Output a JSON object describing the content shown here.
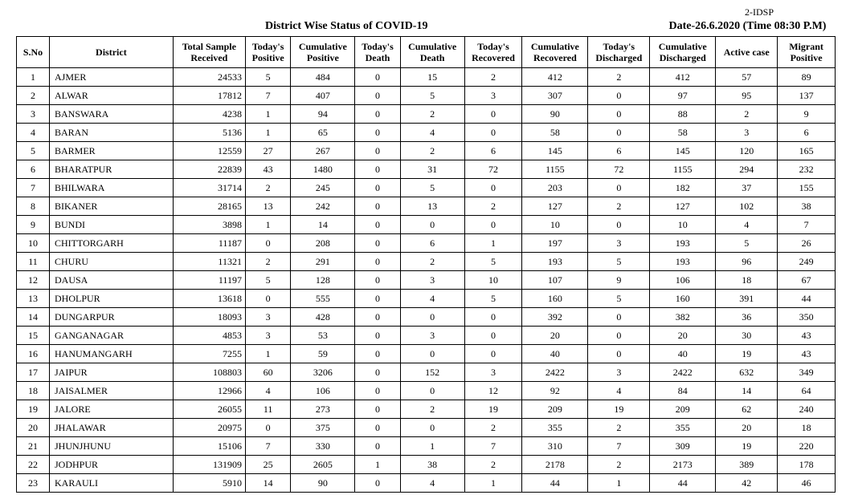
{
  "page_tag": "2-IDSP",
  "title": "District Wise Status of  COVID-19",
  "date_label": "Date-26.6.2020 (Time 08:30 P.M)",
  "columns": [
    "S.No",
    "District",
    "Total Sample Received",
    "Today's Positive",
    "Cumulative Positive",
    "Today's Death",
    "Cumulative Death",
    "Today's Recovered",
    "Cumulative Recovered",
    "Today's Discharged",
    "Cumulative Discharged",
    "Active case",
    "Migrant Positive"
  ],
  "rows": [
    {
      "sno": "1",
      "district": "AJMER",
      "sample": "24533",
      "tpos": "5",
      "cpos": "484",
      "tdeath": "0",
      "cdeath": "15",
      "trec": "2",
      "crec": "412",
      "tdis": "2",
      "cdis": "412",
      "active": "57",
      "mig": "89"
    },
    {
      "sno": "2",
      "district": "ALWAR",
      "sample": "17812",
      "tpos": "7",
      "cpos": "407",
      "tdeath": "0",
      "cdeath": "5",
      "trec": "3",
      "crec": "307",
      "tdis": "0",
      "cdis": "97",
      "active": "95",
      "mig": "137"
    },
    {
      "sno": "3",
      "district": "BANSWARA",
      "sample": "4238",
      "tpos": "1",
      "cpos": "94",
      "tdeath": "0",
      "cdeath": "2",
      "trec": "0",
      "crec": "90",
      "tdis": "0",
      "cdis": "88",
      "active": "2",
      "mig": "9"
    },
    {
      "sno": "4",
      "district": "BARAN",
      "sample": "5136",
      "tpos": "1",
      "cpos": "65",
      "tdeath": "0",
      "cdeath": "4",
      "trec": "0",
      "crec": "58",
      "tdis": "0",
      "cdis": "58",
      "active": "3",
      "mig": "6"
    },
    {
      "sno": "5",
      "district": "BARMER",
      "sample": "12559",
      "tpos": "27",
      "cpos": "267",
      "tdeath": "0",
      "cdeath": "2",
      "trec": "6",
      "crec": "145",
      "tdis": "6",
      "cdis": "145",
      "active": "120",
      "mig": "165"
    },
    {
      "sno": "6",
      "district": "BHARATPUR",
      "sample": "22839",
      "tpos": "43",
      "cpos": "1480",
      "tdeath": "0",
      "cdeath": "31",
      "trec": "72",
      "crec": "1155",
      "tdis": "72",
      "cdis": "1155",
      "active": "294",
      "mig": "232"
    },
    {
      "sno": "7",
      "district": "BHILWARA",
      "sample": "31714",
      "tpos": "2",
      "cpos": "245",
      "tdeath": "0",
      "cdeath": "5",
      "trec": "0",
      "crec": "203",
      "tdis": "0",
      "cdis": "182",
      "active": "37",
      "mig": "155"
    },
    {
      "sno": "8",
      "district": "BIKANER",
      "sample": "28165",
      "tpos": "13",
      "cpos": "242",
      "tdeath": "0",
      "cdeath": "13",
      "trec": "2",
      "crec": "127",
      "tdis": "2",
      "cdis": "127",
      "active": "102",
      "mig": "38"
    },
    {
      "sno": "9",
      "district": "BUNDI",
      "sample": "3898",
      "tpos": "1",
      "cpos": "14",
      "tdeath": "0",
      "cdeath": "0",
      "trec": "0",
      "crec": "10",
      "tdis": "0",
      "cdis": "10",
      "active": "4",
      "mig": "7"
    },
    {
      "sno": "10",
      "district": "CHITTORGARH",
      "sample": "11187",
      "tpos": "0",
      "cpos": "208",
      "tdeath": "0",
      "cdeath": "6",
      "trec": "1",
      "crec": "197",
      "tdis": "3",
      "cdis": "193",
      "active": "5",
      "mig": "26"
    },
    {
      "sno": "11",
      "district": "CHURU",
      "sample": "11321",
      "tpos": "2",
      "cpos": "291",
      "tdeath": "0",
      "cdeath": "2",
      "trec": "5",
      "crec": "193",
      "tdis": "5",
      "cdis": "193",
      "active": "96",
      "mig": "249"
    },
    {
      "sno": "12",
      "district": "DAUSA",
      "sample": "11197",
      "tpos": "5",
      "cpos": "128",
      "tdeath": "0",
      "cdeath": "3",
      "trec": "10",
      "crec": "107",
      "tdis": "9",
      "cdis": "106",
      "active": "18",
      "mig": "67"
    },
    {
      "sno": "13",
      "district": "DHOLPUR",
      "sample": "13618",
      "tpos": "0",
      "cpos": "555",
      "tdeath": "0",
      "cdeath": "4",
      "trec": "5",
      "crec": "160",
      "tdis": "5",
      "cdis": "160",
      "active": "391",
      "mig": "44"
    },
    {
      "sno": "14",
      "district": "DUNGARPUR",
      "sample": "18093",
      "tpos": "3",
      "cpos": "428",
      "tdeath": "0",
      "cdeath": "0",
      "trec": "0",
      "crec": "392",
      "tdis": "0",
      "cdis": "382",
      "active": "36",
      "mig": "350"
    },
    {
      "sno": "15",
      "district": "GANGANAGAR",
      "sample": "4853",
      "tpos": "3",
      "cpos": "53",
      "tdeath": "0",
      "cdeath": "3",
      "trec": "0",
      "crec": "20",
      "tdis": "0",
      "cdis": "20",
      "active": "30",
      "mig": "43"
    },
    {
      "sno": "16",
      "district": "HANUMANGARH",
      "sample": "7255",
      "tpos": "1",
      "cpos": "59",
      "tdeath": "0",
      "cdeath": "0",
      "trec": "0",
      "crec": "40",
      "tdis": "0",
      "cdis": "40",
      "active": "19",
      "mig": "43"
    },
    {
      "sno": "17",
      "district": "JAIPUR",
      "sample": "108803",
      "tpos": "60",
      "cpos": "3206",
      "tdeath": "0",
      "cdeath": "152",
      "trec": "3",
      "crec": "2422",
      "tdis": "3",
      "cdis": "2422",
      "active": "632",
      "mig": "349"
    },
    {
      "sno": "18",
      "district": "JAISALMER",
      "sample": "12966",
      "tpos": "4",
      "cpos": "106",
      "tdeath": "0",
      "cdeath": "0",
      "trec": "12",
      "crec": "92",
      "tdis": "4",
      "cdis": "84",
      "active": "14",
      "mig": "64"
    },
    {
      "sno": "19",
      "district": "JALORE",
      "sample": "26055",
      "tpos": "11",
      "cpos": "273",
      "tdeath": "0",
      "cdeath": "2",
      "trec": "19",
      "crec": "209",
      "tdis": "19",
      "cdis": "209",
      "active": "62",
      "mig": "240"
    },
    {
      "sno": "20",
      "district": "JHALAWAR",
      "sample": "20975",
      "tpos": "0",
      "cpos": "375",
      "tdeath": "0",
      "cdeath": "0",
      "trec": "2",
      "crec": "355",
      "tdis": "2",
      "cdis": "355",
      "active": "20",
      "mig": "18"
    },
    {
      "sno": "21",
      "district": "JHUNJHUNU",
      "sample": "15106",
      "tpos": "7",
      "cpos": "330",
      "tdeath": "0",
      "cdeath": "1",
      "trec": "7",
      "crec": "310",
      "tdis": "7",
      "cdis": "309",
      "active": "19",
      "mig": "220"
    },
    {
      "sno": "22",
      "district": "JODHPUR",
      "sample": "131909",
      "tpos": "25",
      "cpos": "2605",
      "tdeath": "1",
      "cdeath": "38",
      "trec": "2",
      "crec": "2178",
      "tdis": "2",
      "cdis": "2173",
      "active": "389",
      "mig": "178"
    },
    {
      "sno": "23",
      "district": "KARAULI",
      "sample": "5910",
      "tpos": "14",
      "cpos": "90",
      "tdeath": "0",
      "cdeath": "4",
      "trec": "1",
      "crec": "44",
      "tdis": "1",
      "cdis": "44",
      "active": "42",
      "mig": "46"
    }
  ]
}
